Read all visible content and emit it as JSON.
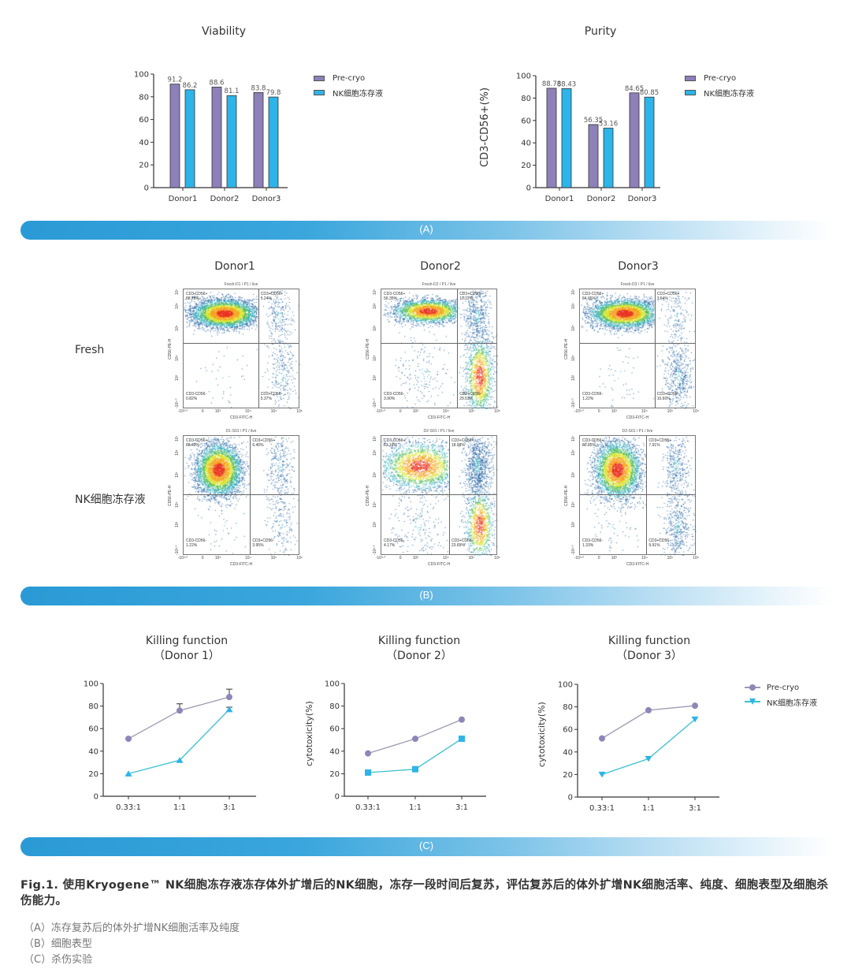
{
  "colors": {
    "pre": "#8e80b8",
    "post": "#2db4e8",
    "pre_line": "#9c98b2",
    "post_line": "#3cc0cf",
    "banner": "#2a9ad6"
  },
  "legend": {
    "pre": "Pre-cryo",
    "post": "NK细胞冻存液"
  },
  "banners": [
    "(A)",
    "(B)",
    "(C)"
  ],
  "section_b": {
    "columns": [
      "Donor1",
      "Donor2",
      "Donor3"
    ],
    "rows": [
      "Fresh",
      "NK细胞冻存液"
    ],
    "x_axis_label": "CD3-FITC-H",
    "y_axis_label": "CD56-PE-H",
    "x_ticks": [
      "-10³·⁰",
      "0",
      "10³",
      "10⁴",
      "10⁵",
      "10⁶"
    ],
    "y_ticks": [
      "-10³·⁰",
      "10³",
      "10⁴",
      "10⁵",
      "10⁶",
      "10⁷"
    ],
    "plots": [
      {
        "title": "Fresh-D1 / P1 / live",
        "q1": "CD3-CD56+",
        "q1v": "88.78%",
        "q2": "CD3+CD56+",
        "q2v": "5.24%",
        "q3": "CD3-CD56-",
        "q3v": "0.82%",
        "q4": "CD3+CD56-",
        "q4v": "5.37%"
      },
      {
        "title": "Fresh-D2 / P1 / live",
        "q1": "CD3-CD56+",
        "q1v": "56.35%",
        "q2": "CD3+CD56+",
        "q2v": "10.22%",
        "q3": "CD3-CD56-",
        "q3v": "3.90%",
        "q4": "CD3+CD56-",
        "q4v": "29.53%"
      },
      {
        "title": "Fresh-D3 / P1 / live",
        "q1": "CD3-CD56+",
        "q1v": "84.65%",
        "q2": "CD3+CD56+",
        "q2v": "3.54%",
        "q3": "CD3-CD56-",
        "q3v": "1.22%",
        "q4": "CD3+CD56-",
        "q4v": "10.60%"
      },
      {
        "title": "D1-S01 / P1 / live",
        "q1": "CD3-CD56+",
        "q1v": "88.43%",
        "q2": "CD3+CD56+",
        "q2v": "6.40%",
        "q3": "CD3-CD56-",
        "q3v": "1.22%",
        "q4": "CD3+CD56-",
        "q4v": "3.95%"
      },
      {
        "title": "D2-S01 / P1 / live",
        "q1": "CD3-CD56+",
        "q1v": "53.16%",
        "q2": "CD3+CD56+",
        "q2v": "18.98%",
        "q3": "CD3-CD56-",
        "q3v": "4.17%",
        "q4": "CD3+CD56-",
        "q4v": "23.69%"
      },
      {
        "title": "D3-S01 / P1 / live",
        "q1": "CD3-CD56+",
        "q1v": "80.85%",
        "q2": "CD3+CD56+",
        "q2v": "7.91%",
        "q3": "CD3-CD56-",
        "q3v": "1.33%",
        "q4": "CD3+CD56-",
        "q4v": "9.91%"
      }
    ]
  },
  "chart_data": [
    {
      "type": "bar",
      "title": "Viability",
      "ylabel": "",
      "xlabel": "",
      "categories": [
        "Donor1",
        "Donor2",
        "Donor3"
      ],
      "ylim": [
        0,
        100
      ],
      "yticks": [
        0,
        20,
        40,
        60,
        80,
        100
      ],
      "series": [
        {
          "name": "Pre-cryo",
          "values": [
            91.2,
            88.6,
            83.8
          ],
          "labels": [
            "91.2",
            "88.6",
            "83.8"
          ]
        },
        {
          "name": "NK细胞冻存液",
          "values": [
            86.2,
            81.1,
            79.8
          ],
          "labels": [
            "86.2",
            "81.1",
            "79.8"
          ]
        }
      ],
      "legend": "top-right"
    },
    {
      "type": "bar",
      "title": "Purity",
      "ylabel": "CD3-CD56+(%)",
      "xlabel": "",
      "categories": [
        "Donor1",
        "Donor2",
        "Donor3"
      ],
      "ylim": [
        0,
        100
      ],
      "yticks": [
        0,
        20,
        40,
        60,
        80,
        100
      ],
      "series": [
        {
          "name": "Pre-cryo",
          "values": [
            88.78,
            56.35,
            84.65
          ],
          "labels": [
            "88.78",
            "56.35",
            "84.65"
          ]
        },
        {
          "name": "NK细胞冻存液",
          "values": [
            88.43,
            53.16,
            80.85
          ],
          "labels": [
            "88.43",
            "53.16",
            "80.85"
          ]
        }
      ],
      "legend": "top-right"
    },
    {
      "type": "line",
      "title": "Killing function",
      "subtitle": "（Donor 1）",
      "ylabel": "",
      "categories": [
        "0.33:1",
        "1:1",
        "3:1"
      ],
      "ylim": [
        0,
        100
      ],
      "yticks": [
        0,
        20,
        40,
        60,
        80,
        100
      ],
      "post_marker": "triangle-up",
      "series": [
        {
          "name": "Pre-cryo",
          "values": [
            51,
            76,
            88
          ],
          "error": [
            0,
            6,
            7
          ]
        },
        {
          "name": "NK细胞冻存液",
          "values": [
            20,
            32,
            77
          ],
          "error": [
            0,
            0,
            2
          ]
        }
      ]
    },
    {
      "type": "line",
      "title": "Killing function",
      "subtitle": "（Donor 2）",
      "ylabel": "cytotoxicity(%)",
      "categories": [
        "0.33:1",
        "1:1",
        "3:1"
      ],
      "ylim": [
        0,
        100
      ],
      "yticks": [
        0,
        20,
        40,
        60,
        80,
        100
      ],
      "post_marker": "square",
      "series": [
        {
          "name": "Pre-cryo",
          "values": [
            38,
            51,
            68
          ],
          "error": [
            0,
            0,
            0
          ]
        },
        {
          "name": "NK细胞冻存液",
          "values": [
            21,
            24,
            51
          ],
          "error": [
            0,
            0,
            0
          ]
        }
      ]
    },
    {
      "type": "line",
      "title": "Killing function",
      "subtitle": "（Donor 3）",
      "ylabel": "cytotoxicity(%)",
      "categories": [
        "0.33:1",
        "1:1",
        "3:1"
      ],
      "ylim": [
        0,
        100
      ],
      "yticks": [
        0,
        20,
        40,
        60,
        80,
        100
      ],
      "post_marker": "triangle-down",
      "legend": "right",
      "series": [
        {
          "name": "Pre-cryo",
          "values": [
            52,
            77,
            81
          ],
          "error": [
            0,
            0,
            0
          ]
        },
        {
          "name": "NK细胞冻存液",
          "values": [
            20,
            34,
            69
          ],
          "error": [
            0,
            0,
            0
          ]
        }
      ]
    }
  ],
  "caption": {
    "main": "Fig.1.  使用Kryogene™ NK细胞冻存液冻存体外扩增后的NK细胞，冻存一段时间后复苏，评估复苏后的体外扩增NK细胞活率、纯度、细胞表型及细胞杀伤能力。",
    "items": [
      "（A）冻存复苏后的体外扩增NK细胞活率及纯度",
      "（B）细胞表型",
      "（C）杀伤实验"
    ]
  }
}
